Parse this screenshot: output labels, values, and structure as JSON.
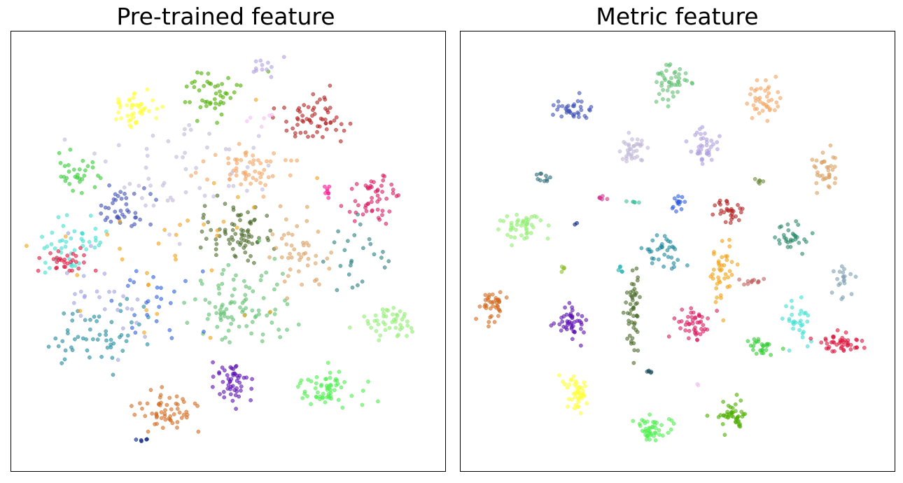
{
  "chart_data": [
    {
      "type": "scatter",
      "title": "Pre-trained feature",
      "xlim": [
        0,
        100
      ],
      "ylim": [
        0,
        100
      ],
      "grid": false,
      "axes_ticks": false,
      "legend": "none",
      "series": [
        {
          "color": "#ffff33",
          "center": [
            27,
            84
          ],
          "spread": [
            4,
            3
          ],
          "count": 45
        },
        {
          "color": "#4daf00",
          "center": [
            46,
            88
          ],
          "spread": [
            5,
            4
          ],
          "count": 45
        },
        {
          "color": "#b0a0e0",
          "center": [
            58,
            95
          ],
          "spread": [
            3,
            1.5
          ],
          "count": 12
        },
        {
          "color": "#b22222",
          "center": [
            70,
            82
          ],
          "spread": [
            5,
            4
          ],
          "count": 60
        },
        {
          "color": "#33cc33",
          "center": [
            13,
            69
          ],
          "spread": [
            3,
            2.5
          ],
          "count": 30
        },
        {
          "color": "#f4a460",
          "center": [
            54,
            70
          ],
          "spread": [
            7,
            3
          ],
          "count": 55
        },
        {
          "color": "#d81b60",
          "center": [
            85,
            63
          ],
          "spread": [
            4,
            4
          ],
          "count": 50
        },
        {
          "color": "#ff1493",
          "center": [
            74,
            65
          ],
          "spread": [
            1,
            1
          ],
          "count": 8
        },
        {
          "color": "#3f51b5",
          "center": [
            25,
            61
          ],
          "spread": [
            4,
            4
          ],
          "count": 40
        },
        {
          "color": "#4b6b2a",
          "center": [
            52,
            55
          ],
          "spread": [
            5,
            4
          ],
          "count": 75
        },
        {
          "color": "#40e0d0",
          "center": [
            12,
            52
          ],
          "spread": [
            5,
            4
          ],
          "count": 45
        },
        {
          "color": "#dc143c",
          "center": [
            10,
            48
          ],
          "spread": [
            4,
            2
          ],
          "count": 30
        },
        {
          "color": "#d2691e",
          "center": [
            35,
            12
          ],
          "spread": [
            5,
            3
          ],
          "count": 55
        },
        {
          "color": "#5b0fb3",
          "center": [
            51,
            19
          ],
          "spread": [
            3,
            4
          ],
          "count": 50
        },
        {
          "color": "#4cee4c",
          "center": [
            74,
            17
          ],
          "spread": [
            5,
            3
          ],
          "count": 60
        },
        {
          "color": "#90ee70",
          "center": [
            89,
            33
          ],
          "spread": [
            4,
            3
          ],
          "count": 45
        },
        {
          "color": "#daa060",
          "center": [
            67,
            50
          ],
          "spread": [
            4,
            6
          ],
          "count": 45
        },
        {
          "color": "#5fbf6f",
          "center": [
            52,
            38
          ],
          "spread": [
            8,
            6
          ],
          "count": 90
        },
        {
          "color": "#1f8a9f",
          "center": [
            18,
            30
          ],
          "spread": [
            6,
            5
          ],
          "count": 55
        },
        {
          "color": "#c0b8d8",
          "center": [
            38,
            70
          ],
          "spread": [
            15,
            10
          ],
          "count": 50
        },
        {
          "color": "#2f5fe0",
          "center": [
            32,
            37
          ],
          "spread": [
            6,
            6
          ],
          "count": 25
        },
        {
          "color": "#f0a010",
          "center": [
            35,
            55
          ],
          "spread": [
            20,
            15
          ],
          "count": 35
        },
        {
          "color": "#2a8080",
          "center": [
            80,
            50
          ],
          "spread": [
            6,
            6
          ],
          "count": 25
        },
        {
          "color": "#a0a0e0",
          "center": [
            20,
            40
          ],
          "spread": [
            8,
            8
          ],
          "count": 25
        },
        {
          "color": "#001a80",
          "center": [
            29,
            5
          ],
          "spread": [
            1,
            0.5
          ],
          "count": 5
        },
        {
          "color": "#f0c0f0",
          "center": [
            58,
            82
          ],
          "spread": [
            3,
            2
          ],
          "count": 6
        }
      ]
    },
    {
      "type": "scatter",
      "title": "Metric feature",
      "xlim": [
        0,
        100
      ],
      "ylim": [
        0,
        100
      ],
      "grid": false,
      "axes_ticks": false,
      "legend": "none",
      "series": [
        {
          "color": "#5fbf6f",
          "center": [
            48,
            91
          ],
          "spread": [
            2.5,
            3
          ],
          "count": 45
        },
        {
          "color": "#3f51b5",
          "center": [
            24,
            84
          ],
          "spread": [
            3.5,
            2
          ],
          "count": 35
        },
        {
          "color": "#f4a460",
          "center": [
            71,
            86
          ],
          "spread": [
            2.5,
            2.5
          ],
          "count": 40
        },
        {
          "color": "#c0b8d8",
          "center": [
            39,
            75
          ],
          "spread": [
            2.5,
            2
          ],
          "count": 35
        },
        {
          "color": "#b0a0e0",
          "center": [
            56,
            76
          ],
          "spread": [
            2.5,
            2.5
          ],
          "count": 40
        },
        {
          "color": "#daa060",
          "center": [
            86,
            70
          ],
          "spread": [
            2,
            3
          ],
          "count": 35
        },
        {
          "color": "#90ee70",
          "center": [
            12,
            56
          ],
          "spread": [
            3,
            2
          ],
          "count": 45
        },
        {
          "color": "#2f5fe0",
          "center": [
            50,
            62
          ],
          "spread": [
            1,
            1.5
          ],
          "count": 15
        },
        {
          "color": "#b22222",
          "center": [
            62,
            60
          ],
          "spread": [
            2,
            2
          ],
          "count": 30
        },
        {
          "color": "#2a8a6a",
          "center": [
            78,
            54
          ],
          "spread": [
            2.5,
            2.5
          ],
          "count": 30
        },
        {
          "color": "#1f8a9f",
          "center": [
            46,
            50
          ],
          "spread": [
            2.5,
            2.5
          ],
          "count": 35
        },
        {
          "color": "#f0a010",
          "center": [
            61,
            45
          ],
          "spread": [
            2,
            4
          ],
          "count": 40
        },
        {
          "color": "#d2691e",
          "center": [
            5,
            37
          ],
          "spread": [
            2,
            2.5
          ],
          "count": 40
        },
        {
          "color": "#5b0fb3",
          "center": [
            24,
            33
          ],
          "spread": [
            2.5,
            2.5
          ],
          "count": 45
        },
        {
          "color": "#4b6b2a",
          "center": [
            39,
            36
          ],
          "spread": [
            1,
            7
          ],
          "count": 50
        },
        {
          "color": "#d81b60",
          "center": [
            54,
            32
          ],
          "spread": [
            2.5,
            2.5
          ],
          "count": 45
        },
        {
          "color": "#40e0d0",
          "center": [
            79,
            33
          ],
          "spread": [
            2,
            4
          ],
          "count": 30
        },
        {
          "color": "#33cc33",
          "center": [
            70,
            27
          ],
          "spread": [
            2.5,
            1.5
          ],
          "count": 25
        },
        {
          "color": "#dc143c",
          "center": [
            90,
            28
          ],
          "spread": [
            4,
            1.5
          ],
          "count": 45
        },
        {
          "color": "#ffff33",
          "center": [
            25,
            16
          ],
          "spread": [
            2,
            3
          ],
          "count": 45
        },
        {
          "color": "#4cee4c",
          "center": [
            44,
            7
          ],
          "spread": [
            2.5,
            2
          ],
          "count": 45
        },
        {
          "color": "#4daf00",
          "center": [
            63,
            11
          ],
          "spread": [
            2.5,
            2.5
          ],
          "count": 45
        },
        {
          "color": "#2a6a7a",
          "center": [
            17,
            68
          ],
          "spread": [
            1.5,
            1.5
          ],
          "count": 10
        },
        {
          "color": "#90c030",
          "center": [
            22,
            46
          ],
          "spread": [
            0.5,
            0.5
          ],
          "count": 5
        },
        {
          "color": "#18b0b0",
          "center": [
            36,
            46
          ],
          "spread": [
            0.7,
            0.7
          ],
          "count": 5
        },
        {
          "color": "#7fa0b0",
          "center": [
            90,
            43
          ],
          "spread": [
            1.5,
            2.5
          ],
          "count": 20
        },
        {
          "color": "#c06060",
          "center": [
            68,
            43
          ],
          "spread": [
            2,
            0.5
          ],
          "count": 12
        },
        {
          "color": "#6b8a3a",
          "center": [
            70,
            67
          ],
          "spread": [
            0.7,
            0.7
          ],
          "count": 6
        },
        {
          "color": "#40c0a0",
          "center": [
            39,
            62
          ],
          "spread": [
            1,
            0.4
          ],
          "count": 6
        },
        {
          "color": "#d03090",
          "center": [
            31,
            63
          ],
          "spread": [
            1,
            0.5
          ],
          "count": 6
        },
        {
          "color": "#1a4a5a",
          "center": [
            43,
            21
          ],
          "spread": [
            0.7,
            0.3
          ],
          "count": 5
        },
        {
          "color": "#001a80",
          "center": [
            25,
            57
          ],
          "spread": [
            0.2,
            0.2
          ],
          "count": 2
        },
        {
          "color": "#f0c0f0",
          "center": [
            55,
            18
          ],
          "spread": [
            0.3,
            0.3
          ],
          "count": 2
        }
      ]
    }
  ]
}
